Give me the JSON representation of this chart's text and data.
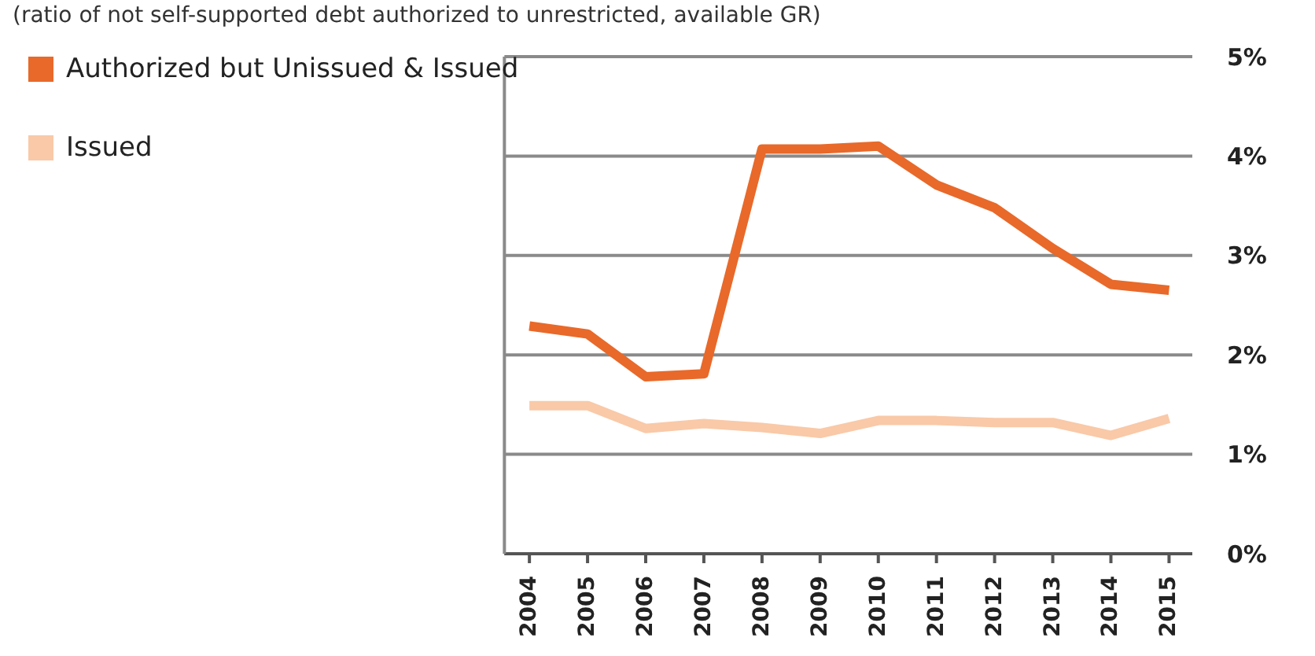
{
  "chart_data": {
    "type": "line",
    "subtitle": "(ratio of not self-supported debt authorized to unrestricted, available GR)",
    "categories": [
      "2004",
      "2005",
      "2006",
      "2007",
      "2008",
      "2009",
      "2010",
      "2011",
      "2012",
      "2013",
      "2014",
      "2015"
    ],
    "series": [
      {
        "name": "Authorized but Unissued & Issued",
        "color": "#e8692a",
        "values": [
          2.29,
          2.21,
          1.78,
          1.81,
          4.07,
          4.07,
          4.1,
          3.71,
          3.48,
          3.07,
          2.71,
          2.65
        ]
      },
      {
        "name": "Issued",
        "color": "#f9c9a8",
        "values": [
          1.49,
          1.49,
          1.26,
          1.31,
          1.27,
          1.21,
          1.34,
          1.34,
          1.32,
          1.32,
          1.19,
          1.36
        ]
      }
    ],
    "ylim": [
      0,
      5
    ],
    "yticks": [
      {
        "value": 0,
        "label": "0%"
      },
      {
        "value": 1,
        "label": "1%"
      },
      {
        "value": 2,
        "label": "2%"
      },
      {
        "value": 3,
        "label": "3%"
      },
      {
        "value": 4,
        "label": "4%"
      },
      {
        "value": 5,
        "label": "5%"
      }
    ],
    "grid": "y",
    "legend": "top left",
    "marker": "none",
    "line_style": "solid"
  }
}
